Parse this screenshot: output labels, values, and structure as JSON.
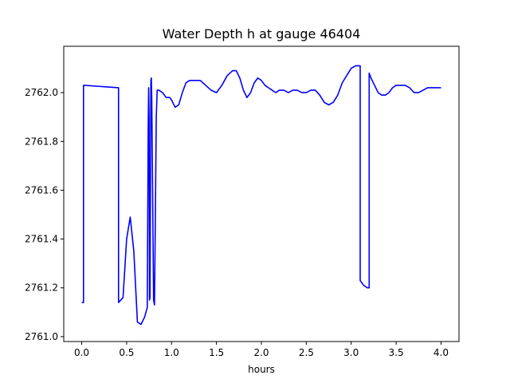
{
  "chart_data": {
    "type": "line",
    "title": "Water Depth h at gauge 46404",
    "xlabel": "hours",
    "ylabel": "",
    "xlim": [
      -0.2,
      4.2
    ],
    "ylim": [
      2760.98,
      2762.19
    ],
    "xticks": [
      0.0,
      0.5,
      1.0,
      1.5,
      2.0,
      2.5,
      3.0,
      3.5,
      4.0
    ],
    "xtick_labels": [
      "0.0",
      "0.5",
      "1.0",
      "1.5",
      "2.0",
      "2.5",
      "3.0",
      "3.5",
      "4.0"
    ],
    "yticks": [
      2761.0,
      2761.2,
      2761.4,
      2761.6,
      2761.8,
      2762.0
    ],
    "ytick_labels": [
      "2761.0",
      "2761.2",
      "2761.4",
      "2761.6",
      "2761.8",
      "2762.0"
    ],
    "grid": false,
    "series": [
      {
        "color": "#0000ff",
        "x": [
          0.0,
          0.02,
          0.02,
          0.03,
          0.41,
          0.41,
          0.46,
          0.5,
          0.54,
          0.58,
          0.62,
          0.66,
          0.7,
          0.73,
          0.74,
          0.745,
          0.75,
          0.755,
          0.76,
          0.765,
          0.77,
          0.775,
          0.78,
          0.8,
          0.81,
          0.82,
          0.83,
          0.84,
          0.845,
          0.85,
          0.86,
          0.9,
          0.94,
          0.98,
          1.0,
          1.04,
          1.08,
          1.12,
          1.16,
          1.2,
          1.26,
          1.32,
          1.38,
          1.44,
          1.5,
          1.56,
          1.62,
          1.68,
          1.72,
          1.76,
          1.8,
          1.84,
          1.88,
          1.92,
          1.96,
          2.0,
          2.04,
          2.08,
          2.12,
          2.16,
          2.2,
          2.25,
          2.3,
          2.35,
          2.4,
          2.45,
          2.5,
          2.55,
          2.6,
          2.65,
          2.7,
          2.75,
          2.8,
          2.85,
          2.9,
          2.95,
          3.0,
          3.05,
          3.08,
          3.1,
          3.1,
          3.12,
          3.14,
          3.18,
          3.2,
          3.2,
          3.22,
          3.26,
          3.3,
          3.34,
          3.38,
          3.42,
          3.46,
          3.5,
          3.55,
          3.6,
          3.65,
          3.7,
          3.75,
          3.8,
          3.85,
          3.9,
          3.95,
          4.0
        ],
        "y": [
          2761.14,
          2761.14,
          2762.03,
          2762.03,
          2762.02,
          2761.14,
          2761.16,
          2761.4,
          2761.49,
          2761.35,
          2761.06,
          2761.05,
          2761.08,
          2761.12,
          2761.85,
          2762.02,
          2761.9,
          2761.15,
          2761.16,
          2761.6,
          2762.05,
          2762.06,
          2761.97,
          2761.15,
          2761.13,
          2761.5,
          2761.9,
          2762.01,
          2762.01,
          2762.01,
          2762.01,
          2762.0,
          2761.98,
          2761.98,
          2761.97,
          2761.94,
          2761.95,
          2762.0,
          2762.04,
          2762.05,
          2762.05,
          2762.05,
          2762.03,
          2762.01,
          2762.0,
          2762.03,
          2762.07,
          2762.09,
          2762.09,
          2762.06,
          2762.01,
          2761.98,
          2762.0,
          2762.04,
          2762.06,
          2762.05,
          2762.03,
          2762.02,
          2762.01,
          2762.0,
          2762.01,
          2762.01,
          2762.0,
          2762.01,
          2762.01,
          2762.0,
          2762.0,
          2762.01,
          2762.01,
          2761.99,
          2761.96,
          2761.95,
          2761.96,
          2761.99,
          2762.04,
          2762.07,
          2762.1,
          2762.11,
          2762.11,
          2762.11,
          2761.23,
          2761.22,
          2761.21,
          2761.2,
          2761.2,
          2762.08,
          2762.06,
          2762.03,
          2762.0,
          2761.99,
          2761.99,
          2762.0,
          2762.02,
          2762.03,
          2762.03,
          2762.03,
          2762.02,
          2762.0,
          2762.0,
          2762.01,
          2762.02,
          2762.02,
          2762.02,
          2762.02
        ]
      }
    ]
  }
}
